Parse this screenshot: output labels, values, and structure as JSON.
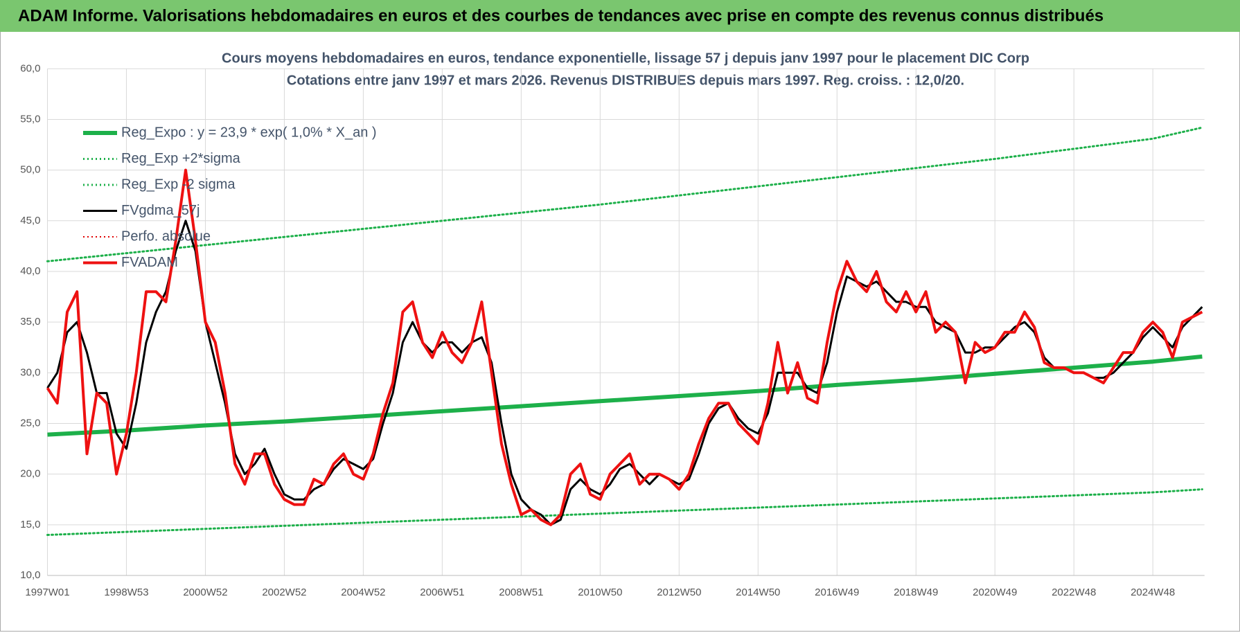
{
  "header": {
    "title": "ADAM Informe. Valorisations hebdomadaires en euros et des courbes de tendances avec prise en compte des revenus connus distribués"
  },
  "chart_data": {
    "type": "line",
    "title": "Cours moyens hebdomadaires en euros, tendance exponentielle, lissage 57 j depuis janv 1997 pour le placement DIC Corp",
    "subtitle": "Cotations entre janv 1997 et mars 2026. Revenus DISTRIBUES depuis mars 1997. Reg. croiss. : 12,0/20.",
    "grid": true,
    "legend": "upper-left",
    "xlim": [
      0,
      1524
    ],
    "xticks": [
      {
        "value": 0,
        "label": "1997W01"
      },
      {
        "value": 104,
        "label": "1998W53"
      },
      {
        "value": 208,
        "label": "2000W52"
      },
      {
        "value": 312,
        "label": "2002W52"
      },
      {
        "value": 416,
        "label": "2004W52"
      },
      {
        "value": 520,
        "label": "2006W51"
      },
      {
        "value": 624,
        "label": "2008W51"
      },
      {
        "value": 728,
        "label": "2010W50"
      },
      {
        "value": 832,
        "label": "2012W50"
      },
      {
        "value": 936,
        "label": "2014W50"
      },
      {
        "value": 1040,
        "label": "2016W49"
      },
      {
        "value": 1144,
        "label": "2018W49"
      },
      {
        "value": 1248,
        "label": "2020W49"
      },
      {
        "value": 1352,
        "label": "2022W48"
      },
      {
        "value": 1456,
        "label": "2024W48"
      }
    ],
    "ylim": [
      10,
      60
    ],
    "yticks": [
      {
        "value": 10,
        "label": "10,0"
      },
      {
        "value": 15,
        "label": "15,0"
      },
      {
        "value": 20,
        "label": "20,0"
      },
      {
        "value": 25,
        "label": "25,0"
      },
      {
        "value": 30,
        "label": "30,0"
      },
      {
        "value": 35,
        "label": "35,0"
      },
      {
        "value": 40,
        "label": "40,0"
      },
      {
        "value": 45,
        "label": "45,0"
      },
      {
        "value": 50,
        "label": "50,0"
      },
      {
        "value": 55,
        "label": "55,0"
      },
      {
        "value": 60,
        "label": "60,0"
      }
    ],
    "x": [
      0,
      13,
      26,
      39,
      52,
      65,
      78,
      91,
      104,
      117,
      130,
      143,
      156,
      169,
      182,
      195,
      208,
      221,
      234,
      247,
      260,
      273,
      286,
      299,
      312,
      325,
      338,
      351,
      364,
      377,
      390,
      403,
      416,
      429,
      442,
      455,
      468,
      481,
      494,
      507,
      520,
      533,
      546,
      559,
      572,
      585,
      598,
      611,
      624,
      637,
      650,
      663,
      676,
      689,
      702,
      715,
      728,
      741,
      754,
      767,
      780,
      793,
      806,
      819,
      832,
      845,
      858,
      871,
      884,
      897,
      910,
      923,
      936,
      949,
      962,
      975,
      988,
      1001,
      1014,
      1027,
      1040,
      1053,
      1066,
      1079,
      1092,
      1105,
      1118,
      1131,
      1144,
      1157,
      1170,
      1183,
      1196,
      1209,
      1222,
      1235,
      1248,
      1261,
      1274,
      1287,
      1300,
      1313,
      1326,
      1339,
      1352,
      1365,
      1378,
      1391,
      1404,
      1417,
      1430,
      1443,
      1456,
      1469,
      1482,
      1495,
      1508,
      1521
    ],
    "series": [
      {
        "name": "Reg_Expo : y = 23,9 * exp( 1,0% *  X_an )",
        "color": "#1db04a",
        "dash": "solid",
        "x": [
          0,
          104,
          208,
          312,
          416,
          520,
          624,
          728,
          832,
          936,
          1040,
          1144,
          1248,
          1352,
          1456,
          1521
        ],
        "values": [
          23.9,
          24.3,
          24.8,
          25.2,
          25.7,
          26.2,
          26.7,
          27.2,
          27.7,
          28.2,
          28.8,
          29.3,
          29.9,
          30.5,
          31.1,
          31.6
        ]
      },
      {
        "name": "Reg_Exp +2*sigma",
        "color": "#1db04a",
        "dash": "dotted",
        "x": [
          0,
          104,
          208,
          312,
          416,
          520,
          624,
          728,
          832,
          936,
          1040,
          1144,
          1248,
          1352,
          1456,
          1521
        ],
        "values": [
          41.0,
          41.8,
          42.6,
          43.4,
          44.2,
          45.0,
          45.8,
          46.6,
          47.5,
          48.4,
          49.3,
          50.2,
          51.1,
          52.1,
          53.1,
          54.2
        ]
      },
      {
        "name": "Reg_Exp -2 sigma",
        "color": "#1db04a",
        "dash": "dotted",
        "x": [
          0,
          104,
          208,
          312,
          416,
          520,
          624,
          728,
          832,
          936,
          1040,
          1144,
          1248,
          1352,
          1456,
          1521
        ],
        "values": [
          14.0,
          14.3,
          14.6,
          14.9,
          15.2,
          15.5,
          15.8,
          16.1,
          16.4,
          16.7,
          17.0,
          17.3,
          17.6,
          17.9,
          18.2,
          18.5
        ]
      },
      {
        "name": "FVgdma_57j",
        "color": "#000000",
        "dash": "solid",
        "values": [
          28.5,
          30,
          34,
          35,
          32,
          28,
          28,
          24,
          22.5,
          27,
          33,
          36,
          38,
          42,
          45,
          42,
          35,
          31,
          27,
          22,
          20,
          21,
          22.5,
          20,
          18,
          17.5,
          17.5,
          18.5,
          19,
          20.5,
          21.5,
          21,
          20.5,
          21.5,
          25,
          28,
          33,
          35,
          33,
          32,
          33,
          33,
          32,
          33,
          33.5,
          31,
          25,
          20,
          17.5,
          16.5,
          16,
          15,
          15.5,
          18.5,
          19.5,
          18.5,
          18,
          19,
          20.5,
          21,
          20,
          19,
          20,
          19.5,
          19,
          19.5,
          22,
          25,
          26.5,
          27,
          25.5,
          24.5,
          24,
          26,
          30,
          30,
          30,
          28.5,
          28,
          31,
          36,
          39.5,
          39,
          38.5,
          39,
          38,
          37,
          37,
          36.5,
          36.5,
          35,
          34.5,
          34,
          32,
          32,
          32.5,
          32.5,
          33.5,
          34.5,
          35,
          34,
          31.5,
          30.5,
          30.5,
          30,
          30,
          29.5,
          29.5,
          30,
          31,
          32,
          33.5,
          34.5,
          33.5,
          32.5,
          34.5,
          35.5,
          36.5
        ]
      },
      {
        "name": "Perfo. absolue",
        "color": "#e00000",
        "dash": "dotted",
        "x": [],
        "values": []
      },
      {
        "name": "FVADAM",
        "color": "#ee1111",
        "dash": "solid",
        "values": [
          28.5,
          27,
          36,
          38,
          22,
          28,
          27,
          20,
          24,
          30,
          38,
          38,
          37,
          43,
          50,
          43,
          35,
          33,
          28,
          21,
          19,
          22,
          22,
          19,
          17.5,
          17,
          17,
          19.5,
          19,
          21,
          22,
          20,
          19.5,
          22,
          26,
          29,
          36,
          37,
          33,
          31.5,
          34,
          32,
          31,
          33,
          37,
          30,
          23,
          19,
          16,
          16.5,
          15.5,
          15,
          16,
          20,
          21,
          18,
          17.5,
          20,
          21,
          22,
          19,
          20,
          20,
          19.5,
          18.5,
          20,
          23,
          25.5,
          27,
          27,
          25,
          24,
          23,
          27,
          33,
          28,
          31,
          27.5,
          27,
          33,
          38,
          41,
          39,
          38,
          40,
          37,
          36,
          38,
          36,
          38,
          34,
          35,
          34,
          29,
          33,
          32,
          32.5,
          34,
          34,
          36,
          34.5,
          31,
          30.5,
          30.5,
          30,
          30,
          29.5,
          29,
          30.5,
          32,
          32,
          34,
          35,
          34,
          31.5,
          35,
          35.5,
          36
        ]
      }
    ]
  }
}
